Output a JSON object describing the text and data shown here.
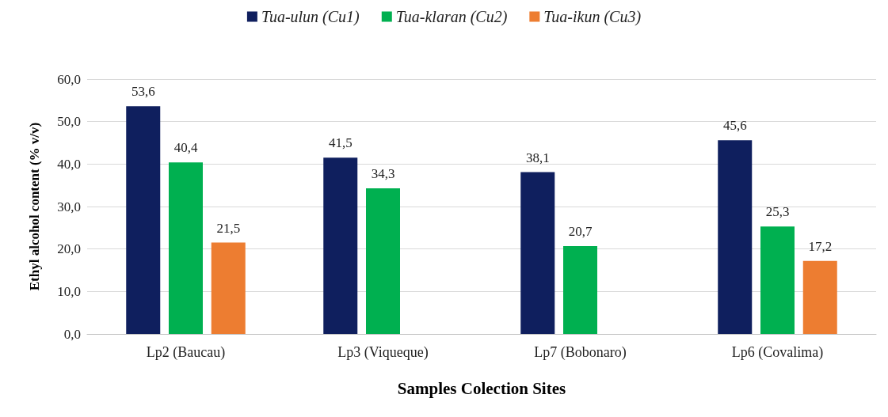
{
  "chart_data": {
    "type": "bar",
    "xlabel": "Samples Colection Sites",
    "ylabel": "Ethyl alcohol content (% v/v)",
    "categories": [
      "Lp2 (Baucau)",
      "Lp3 (Viqueque)",
      "Lp7 (Bobonaro)",
      "Lp6 (Covalima)"
    ],
    "series": [
      {
        "name": "Tua-ulun (Cu1)",
        "color": "#0f1f5e",
        "values": [
          53.6,
          41.5,
          38.1,
          45.6
        ],
        "value_labels": [
          "53,6",
          "41,5",
          "38,1",
          "45,6"
        ]
      },
      {
        "name": "Tua-klaran (Cu2)",
        "color": "#00b050",
        "values": [
          40.4,
          34.3,
          20.7,
          25.3
        ],
        "value_labels": [
          "40,4",
          "34,3",
          "20,7",
          "25,3"
        ]
      },
      {
        "name": "Tua-ikun (Cu3)",
        "color": "#ed7d31",
        "values": [
          21.5,
          null,
          null,
          17.2
        ],
        "value_labels": [
          "21,5",
          null,
          null,
          "17,2"
        ]
      }
    ],
    "ylim": [
      0,
      60
    ],
    "yticks": [
      {
        "value": 0,
        "label": "0,0"
      },
      {
        "value": 10,
        "label": "10,0"
      },
      {
        "value": 20,
        "label": "20,0"
      },
      {
        "value": 30,
        "label": "30,0"
      },
      {
        "value": 40,
        "label": "40,0"
      },
      {
        "value": 50,
        "label": "50,0"
      },
      {
        "value": 60,
        "label": "60,0"
      }
    ],
    "grid": "y",
    "legend": "top"
  }
}
